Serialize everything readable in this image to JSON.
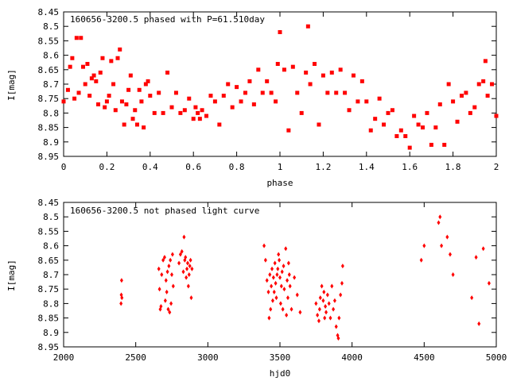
{
  "chart_data": [
    {
      "type": "scatter",
      "title": "160656-3200.5 phased with P=61.510day",
      "xlabel": "phase",
      "ylabel": "I[mag]",
      "xlim": [
        0,
        2
      ],
      "ylim": [
        8.45,
        8.95
      ],
      "y_inverted": true,
      "xticks": [
        "0",
        "0.2",
        "0.4",
        "0.6",
        "0.8",
        "1",
        "1.2",
        "1.4",
        "1.6",
        "1.8",
        "2"
      ],
      "yticks": [
        "8.45",
        "8.5",
        "8.55",
        "8.6",
        "8.65",
        "8.7",
        "8.75",
        "8.8",
        "8.85",
        "8.9",
        "8.95"
      ],
      "marker": "square",
      "marker_color": "#ff0000",
      "series": [
        {
          "x": [
            0.0,
            0.02,
            0.03,
            0.04,
            0.05,
            0.06,
            0.07,
            0.08,
            0.09,
            0.1,
            0.11,
            0.12,
            0.13,
            0.14,
            0.15,
            0.16,
            0.17,
            0.18,
            0.19,
            0.2,
            0.21,
            0.22,
            0.23,
            0.24,
            0.25,
            0.26,
            0.27,
            0.28,
            0.29,
            0.3,
            0.31,
            0.32,
            0.33,
            0.34,
            0.35,
            0.36,
            0.37,
            0.38,
            0.39,
            0.4,
            0.42,
            0.44,
            0.46,
            0.48,
            0.5,
            0.52,
            0.54,
            0.56,
            0.58,
            0.6,
            0.61,
            0.62,
            0.63,
            0.64,
            0.66,
            0.68,
            0.7,
            0.72,
            0.74,
            0.76,
            0.78,
            0.8,
            0.82,
            0.84,
            0.86,
            0.88,
            0.9,
            0.92,
            0.94,
            0.96,
            0.98,
            0.99,
            1.0,
            1.02,
            1.04,
            1.06,
            1.08,
            1.1,
            1.12,
            1.13,
            1.14,
            1.16,
            1.18,
            1.2,
            1.22,
            1.24,
            1.26,
            1.28,
            1.3,
            1.32,
            1.34,
            1.36,
            1.38,
            1.4,
            1.42,
            1.44,
            1.46,
            1.48,
            1.5,
            1.52,
            1.54,
            1.56,
            1.58,
            1.6,
            1.62,
            1.64,
            1.66,
            1.68,
            1.7,
            1.72,
            1.74,
            1.76,
            1.78,
            1.8,
            1.82,
            1.84,
            1.86,
            1.88,
            1.9,
            1.92,
            1.94,
            1.95,
            1.96,
            1.98,
            2.0
          ],
          "y": [
            8.76,
            8.72,
            8.64,
            8.61,
            8.75,
            8.54,
            8.73,
            8.54,
            8.64,
            8.7,
            8.63,
            8.74,
            8.68,
            8.67,
            8.69,
            8.77,
            8.66,
            8.61,
            8.78,
            8.76,
            8.74,
            8.62,
            8.7,
            8.79,
            8.61,
            8.58,
            8.76,
            8.84,
            8.77,
            8.72,
            8.67,
            8.82,
            8.79,
            8.84,
            8.72,
            8.76,
            8.85,
            8.7,
            8.69,
            8.74,
            8.8,
            8.73,
            8.8,
            8.66,
            8.78,
            8.73,
            8.8,
            8.79,
            8.75,
            8.82,
            8.78,
            8.8,
            8.82,
            8.79,
            8.81,
            8.74,
            8.76,
            8.84,
            8.74,
            8.7,
            8.78,
            8.71,
            8.76,
            8.73,
            8.69,
            8.77,
            8.65,
            8.73,
            8.69,
            8.73,
            8.76,
            8.63,
            8.52,
            8.65,
            8.86,
            8.64,
            8.73,
            8.8,
            8.66,
            8.5,
            8.7,
            8.63,
            8.84,
            8.67,
            8.73,
            8.66,
            8.73,
            8.65,
            8.73,
            8.79,
            8.67,
            8.76,
            8.69,
            8.76,
            8.86,
            8.82,
            8.75,
            8.84,
            8.8,
            8.79,
            8.88,
            8.86,
            8.88,
            8.92,
            8.81,
            8.84,
            8.85,
            8.8,
            8.91,
            8.85,
            8.77,
            8.91,
            8.7,
            8.76,
            8.83,
            8.74,
            8.73,
            8.8,
            8.78,
            8.7,
            8.69,
            8.62,
            8.74,
            8.7,
            8.81
          ]
        }
      ]
    },
    {
      "type": "scatter",
      "title": "160656-3200.5 not phased light curve",
      "xlabel": "hjd0",
      "ylabel": "I[mag]",
      "xlim": [
        2000,
        5000
      ],
      "ylim": [
        8.45,
        8.95
      ],
      "y_inverted": true,
      "xticks": [
        "2000",
        "2500",
        "3000",
        "3500",
        "4000",
        "4500",
        "5000"
      ],
      "yticks": [
        "8.45",
        "8.5",
        "8.55",
        "8.6",
        "8.65",
        "8.7",
        "8.75",
        "8.8",
        "8.85",
        "8.9",
        "8.95"
      ],
      "marker": "diamond",
      "marker_color": "#ff0000",
      "series": [
        {
          "x": [
            2398,
            2400,
            2402,
            2404,
            2660,
            2665,
            2670,
            2675,
            2680,
            2690,
            2700,
            2705,
            2710,
            2715,
            2720,
            2725,
            2730,
            2735,
            2740,
            2745,
            2750,
            2755,
            2760,
            2800,
            2810,
            2820,
            2830,
            2835,
            2840,
            2845,
            2850,
            2855,
            2860,
            2865,
            2870,
            2875,
            2880,
            2885,
            2890,
            3390,
            3400,
            3410,
            3420,
            3425,
            3430,
            3435,
            3440,
            3445,
            3450,
            3455,
            3460,
            3465,
            3470,
            3475,
            3480,
            3485,
            3490,
            3495,
            3500,
            3505,
            3510,
            3515,
            3520,
            3525,
            3530,
            3540,
            3545,
            3550,
            3555,
            3560,
            3565,
            3570,
            3580,
            3600,
            3620,
            3640,
            3750,
            3760,
            3770,
            3775,
            3780,
            3790,
            3800,
            3805,
            3810,
            3815,
            3820,
            3830,
            3840,
            3850,
            3860,
            3870,
            3880,
            3890,
            3900,
            3905,
            3910,
            3920,
            3930,
            3935,
            4480,
            4500,
            4600,
            4610,
            4620,
            4660,
            4680,
            4700,
            4830,
            4860,
            4880,
            4910,
            4950
          ],
          "y": [
            8.8,
            8.77,
            8.72,
            8.78,
            8.68,
            8.75,
            8.82,
            8.81,
            8.7,
            8.65,
            8.64,
            8.79,
            8.72,
            8.76,
            8.69,
            8.82,
            8.67,
            8.83,
            8.65,
            8.8,
            8.7,
            8.63,
            8.74,
            8.66,
            8.63,
            8.62,
            8.69,
            8.57,
            8.65,
            8.64,
            8.71,
            8.68,
            8.66,
            8.74,
            8.7,
            8.67,
            8.65,
            8.78,
            8.68,
            8.6,
            8.65,
            8.72,
            8.76,
            8.85,
            8.7,
            8.82,
            8.74,
            8.68,
            8.79,
            8.71,
            8.76,
            8.66,
            8.73,
            8.78,
            8.7,
            8.68,
            8.63,
            8.65,
            8.71,
            8.8,
            8.74,
            8.69,
            8.82,
            8.67,
            8.75,
            8.61,
            8.84,
            8.72,
            8.78,
            8.66,
            8.7,
            8.74,
            8.82,
            8.71,
            8.77,
            8.83,
            8.8,
            8.84,
            8.86,
            8.82,
            8.78,
            8.74,
            8.79,
            8.76,
            8.85,
            8.81,
            8.83,
            8.77,
            8.8,
            8.85,
            8.74,
            8.82,
            8.79,
            8.88,
            8.91,
            8.92,
            8.85,
            8.77,
            8.73,
            8.67,
            8.65,
            8.6,
            8.52,
            8.5,
            8.6,
            8.57,
            8.63,
            8.7,
            8.78,
            8.64,
            8.87,
            8.61,
            8.73
          ]
        }
      ]
    }
  ]
}
